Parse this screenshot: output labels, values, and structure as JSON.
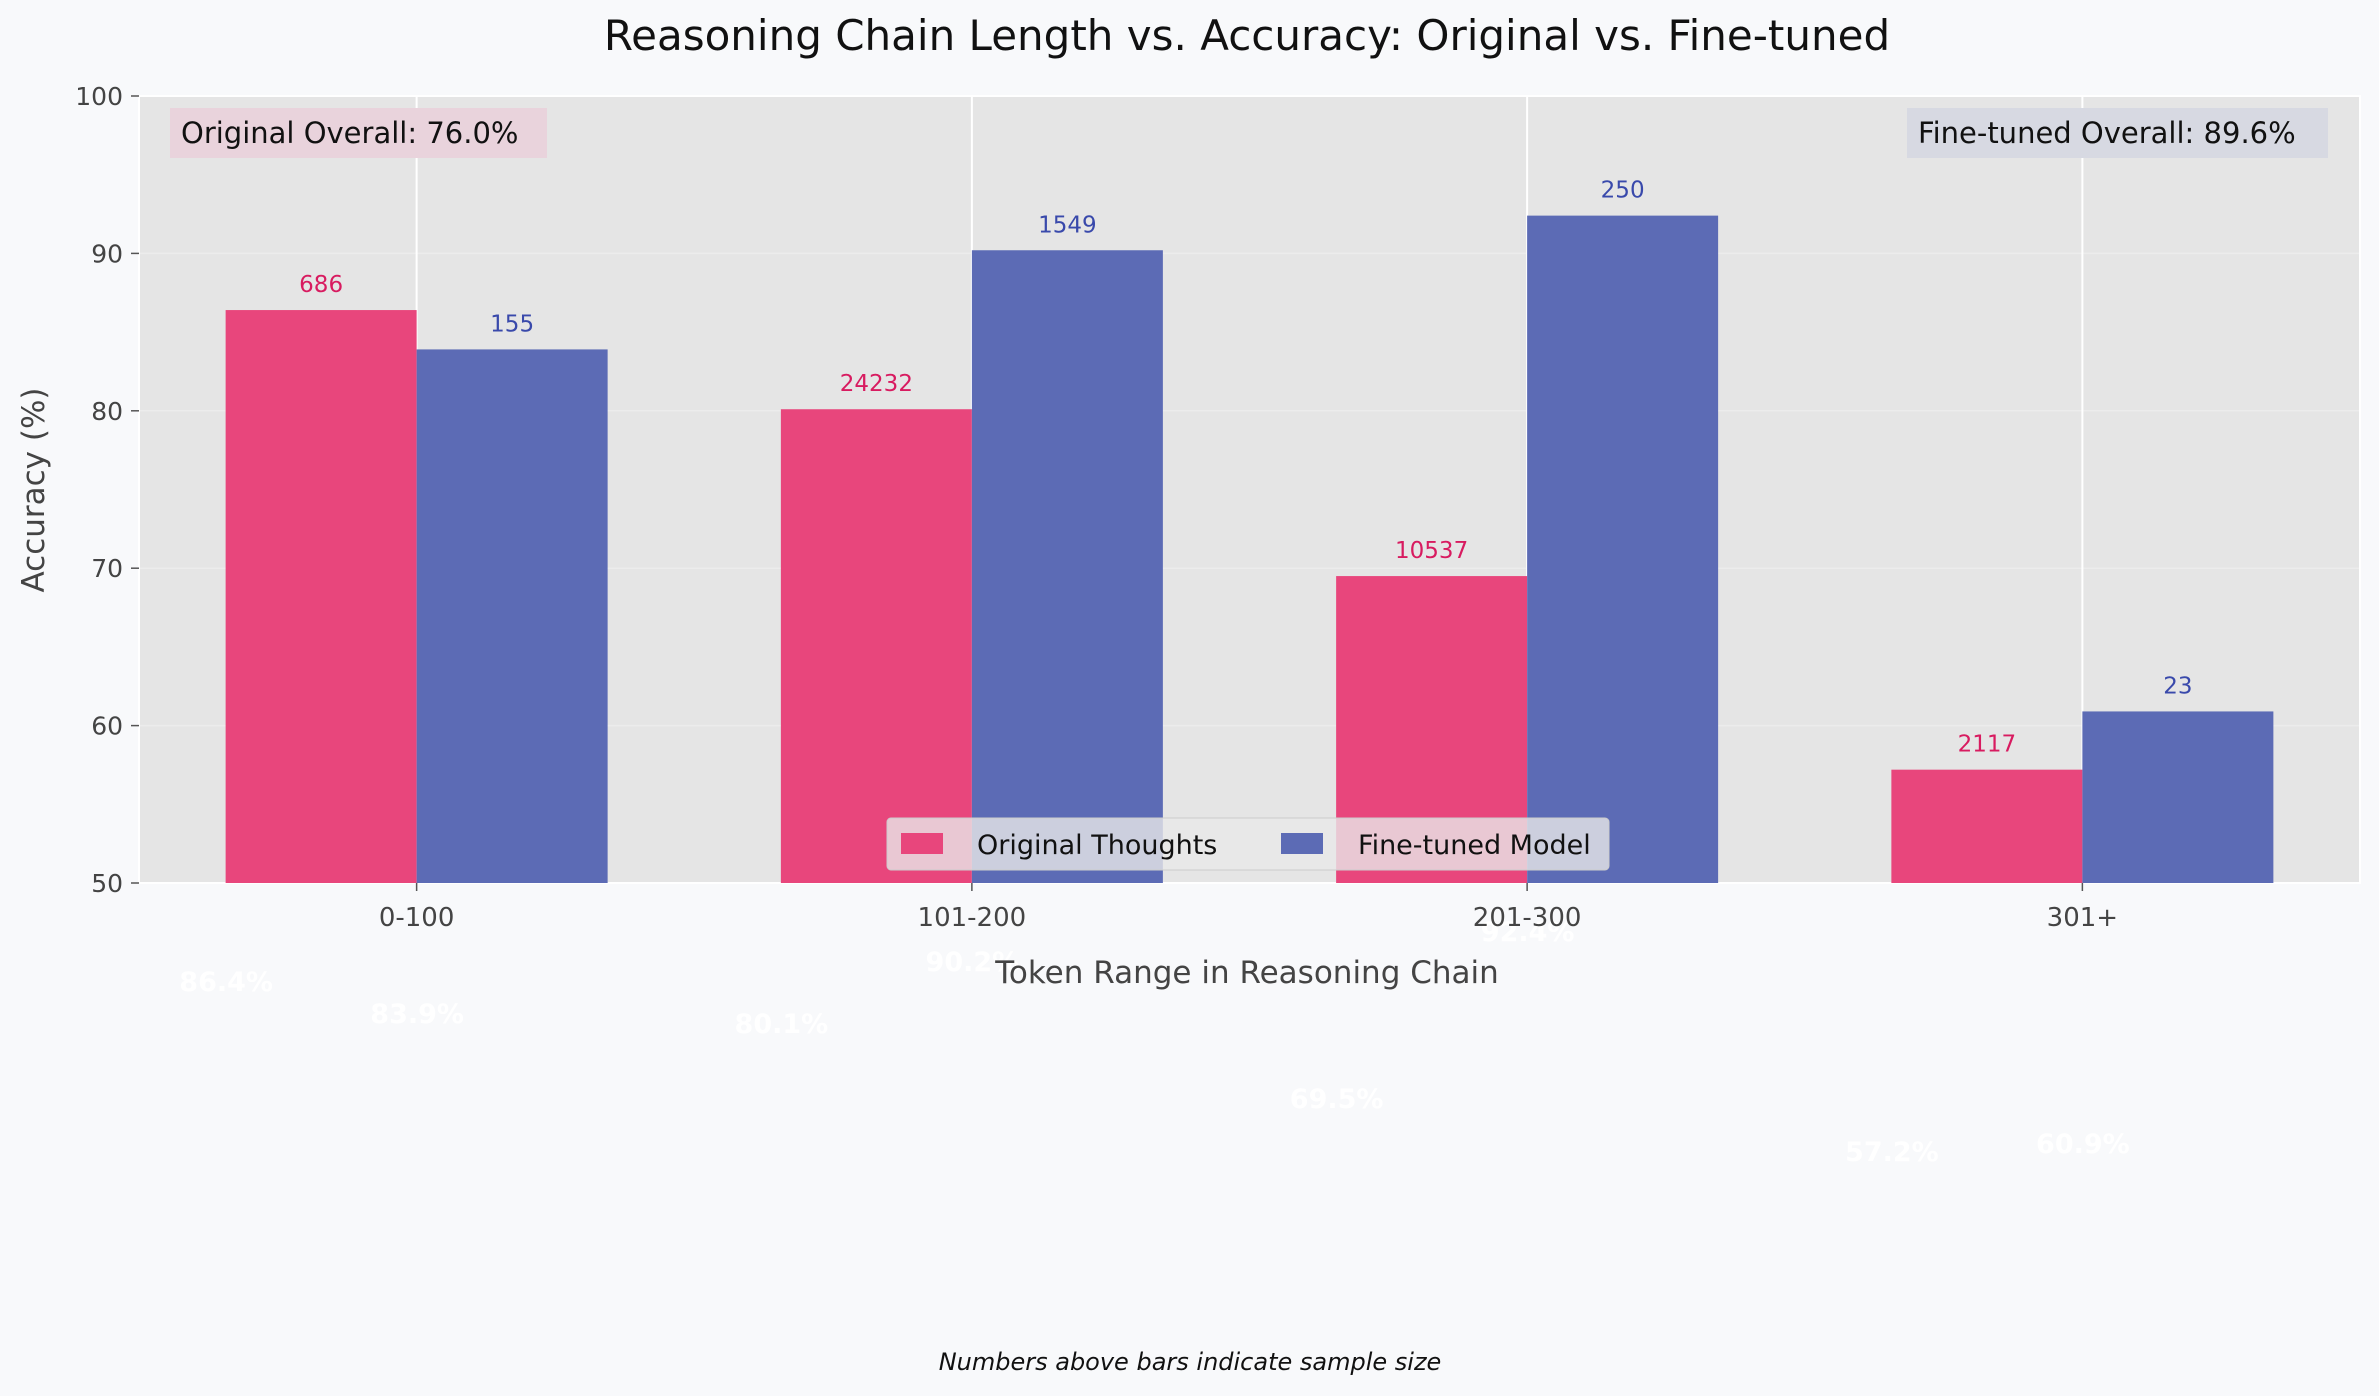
{
  "chart_data": {
    "type": "bar",
    "title": "Reasoning Chain Length vs. Accuracy: Original vs. Fine-tuned",
    "xlabel": "Token Range in Reasoning Chain",
    "ylabel": "Accuracy (%)",
    "ylim": [
      50,
      100
    ],
    "yticks": [
      "50",
      "60",
      "70",
      "80",
      "90",
      "100"
    ],
    "categories": [
      "0-100",
      "101-200",
      "201-300",
      "301+"
    ],
    "grid": true,
    "legend_position": "bottom-center",
    "series": [
      {
        "name": "Original Thoughts",
        "color": "#e8467c",
        "values": [
          86.4,
          80.1,
          69.5,
          57.2
        ],
        "value_labels": [
          "86.4%",
          "80.1%",
          "69.5%",
          "57.2%"
        ],
        "sample_sizes": [
          "686",
          "24232",
          "10537",
          "2117"
        ],
        "count_color": "#d81b60"
      },
      {
        "name": "Fine-tuned Model",
        "color": "#5c6bb5",
        "values": [
          83.9,
          90.2,
          92.4,
          60.9
        ],
        "value_labels": [
          "83.9%",
          "90.2%",
          "92.4%",
          "60.9%"
        ],
        "sample_sizes": [
          "155",
          "1549",
          "250",
          "23"
        ],
        "count_color": "#3949ab"
      }
    ],
    "annotations": {
      "original_overall": "Original Overall: 76.0%",
      "finetuned_overall": "Fine-tuned Overall: 89.6%",
      "footnote": "Numbers above bars indicate sample size"
    }
  }
}
